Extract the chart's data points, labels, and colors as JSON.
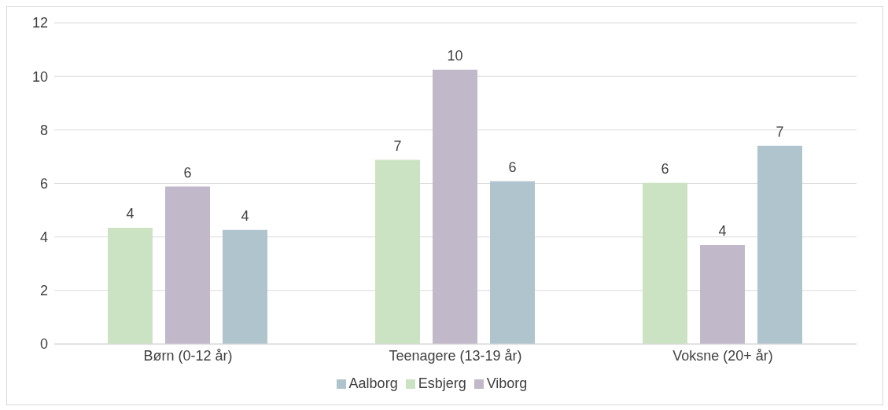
{
  "chart_data": {
    "type": "bar",
    "categories": [
      "Børn (0-12 år)",
      "Teenagere (13-19 år)",
      "Voksne (20+ år)"
    ],
    "series": [
      {
        "name": "Esbjerg",
        "color": "#cce3c3",
        "values": [
          4.34,
          6.88,
          6.02
        ],
        "value_labels": [
          "4",
          "7",
          "6"
        ]
      },
      {
        "name": "Viborg",
        "color": "#c1b8c9",
        "values": [
          5.88,
          10.25,
          3.7
        ],
        "value_labels": [
          "6",
          "10",
          "4"
        ]
      },
      {
        "name": "Aalborg",
        "color": "#b0c4cd",
        "values": [
          4.26,
          6.08,
          7.4
        ],
        "value_labels": [
          "4",
          "6",
          "7"
        ]
      }
    ],
    "ylim": [
      0,
      12
    ],
    "yticks": [
      0,
      2,
      4,
      6,
      8,
      10,
      12
    ],
    "grid": "y",
    "legend": "bottom"
  }
}
